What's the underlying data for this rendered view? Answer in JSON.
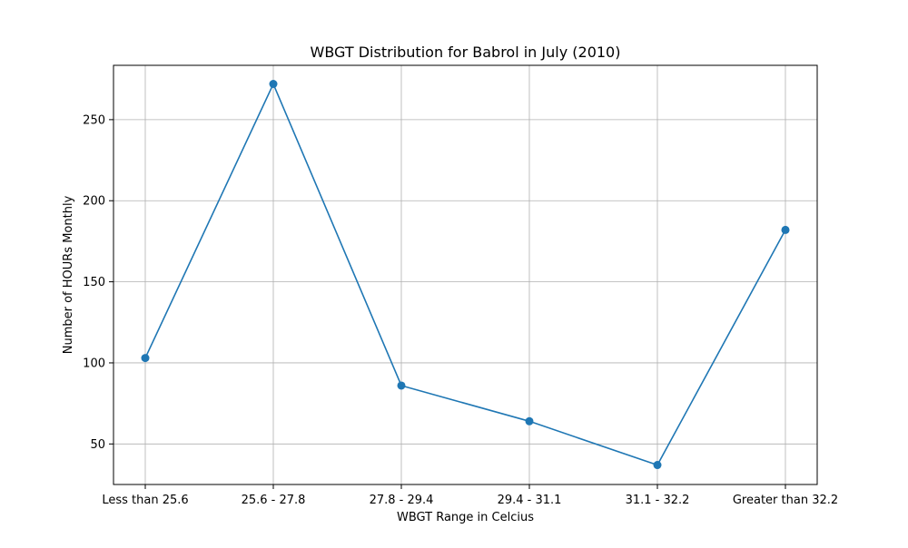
{
  "chart_data": {
    "type": "line",
    "title": "WBGT Distribution for Babrol in July (2010)",
    "xlabel": "WBGT Range in Celcius",
    "ylabel": "Number of HOURs Monthly",
    "categories": [
      "Less than 25.6",
      "25.6 - 27.8",
      "27.8 - 29.4",
      "29.4 - 31.1",
      "31.1 - 32.2",
      "Greater than 32.2"
    ],
    "values": [
      103,
      272,
      86,
      64,
      37,
      182
    ],
    "ylim": [
      25,
      283.5
    ],
    "yticks": [
      50,
      100,
      150,
      200,
      250
    ],
    "grid": true,
    "marker": "circle",
    "color": "#1f77b4"
  }
}
